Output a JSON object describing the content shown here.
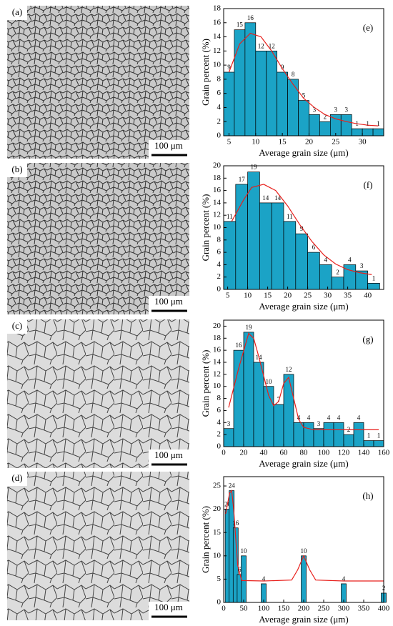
{
  "images": [
    {
      "label": "(a)",
      "scale_bar": "100 μm"
    },
    {
      "label": "(b)",
      "scale_bar": "100 μm"
    },
    {
      "label": "(c)",
      "scale_bar": "100 μm"
    },
    {
      "label": "(d)",
      "scale_bar": "100 μm"
    }
  ],
  "chart_data": [
    {
      "type": "histogram",
      "label": "(e)",
      "xlabel": "Average grain size (μm)",
      "ylabel": "Grain percent (%)",
      "color": "#1ba3c6",
      "fit_color": "#e8201c",
      "bins": [
        4,
        6,
        8,
        10,
        12,
        14,
        16,
        18,
        20,
        22,
        24,
        26,
        28,
        30,
        32,
        34
      ],
      "values": [
        9,
        15,
        16,
        12,
        12,
        9,
        8,
        5,
        3,
        2,
        3,
        3,
        1,
        1,
        1
      ],
      "xlim": [
        4,
        34
      ],
      "xticks": [
        5,
        10,
        15,
        20,
        25,
        30
      ],
      "ylim": [
        0,
        18
      ],
      "yticks": [
        0,
        2,
        4,
        6,
        8,
        10,
        12,
        14,
        16,
        18
      ],
      "fit": {
        "x": [
          5,
          7,
          9,
          11,
          13,
          15,
          17,
          19,
          21,
          23,
          25,
          27,
          29,
          31,
          33
        ],
        "y": [
          9,
          13,
          14.5,
          14,
          12,
          9.5,
          7.3,
          5.3,
          4,
          3,
          2.4,
          2,
          1.7,
          1.5,
          1.4
        ]
      }
    },
    {
      "type": "histogram",
      "label": "(f)",
      "xlabel": "Average grain size (μm)",
      "ylabel": "Grain percent (%)",
      "color": "#1ba3c6",
      "fit_color": "#e8201c",
      "bins": [
        4,
        7,
        10,
        13,
        16,
        19,
        22,
        25,
        28,
        31,
        34,
        37,
        40,
        43
      ],
      "values": [
        11,
        17,
        19,
        14,
        14,
        11,
        9,
        6,
        4,
        2,
        4,
        3,
        1
      ],
      "xlim": [
        4,
        44
      ],
      "xticks": [
        5,
        10,
        15,
        20,
        25,
        30,
        35,
        40
      ],
      "ylim": [
        0,
        20
      ],
      "yticks": [
        0,
        2,
        4,
        6,
        8,
        10,
        12,
        14,
        16,
        18,
        20
      ],
      "fit": {
        "x": [
          6,
          9,
          11,
          14,
          17,
          20,
          23,
          26,
          29,
          32,
          35,
          38,
          41
        ],
        "y": [
          11,
          14.5,
          16.5,
          17,
          16,
          13.5,
          10.5,
          7.8,
          5.6,
          4.1,
          3.2,
          2.7,
          2.4
        ]
      }
    },
    {
      "type": "histogram",
      "label": "(g)",
      "xlabel": "Average grain size (μm)",
      "ylabel": "Grain percent (%)",
      "color": "#1ba3c6",
      "fit_color": "#e8201c",
      "bins": [
        0,
        10,
        20,
        30,
        40,
        50,
        60,
        70,
        80,
        90,
        100,
        110,
        120,
        130,
        140,
        150,
        160
      ],
      "values": [
        3,
        16,
        19,
        14,
        10,
        7,
        12,
        4,
        4,
        3,
        4,
        4,
        2,
        4,
        1,
        1
      ],
      "xlim": [
        0,
        160
      ],
      "xticks": [
        0,
        20,
        40,
        60,
        80,
        100,
        120,
        140,
        160
      ],
      "ylim": [
        0,
        21
      ],
      "yticks": [
        0,
        2,
        4,
        6,
        8,
        10,
        12,
        14,
        16,
        18,
        20
      ],
      "fit": {
        "x": [
          5,
          15,
          25,
          30,
          35,
          45,
          50,
          55,
          60,
          65,
          70,
          75,
          80,
          90,
          155
        ],
        "y": [
          6.5,
          13,
          18.8,
          18,
          15,
          8.5,
          6.8,
          7.5,
          10.5,
          11.5,
          8,
          4.5,
          3.2,
          2.8,
          2.8
        ]
      }
    },
    {
      "type": "bar",
      "label": "(h)",
      "xlabel": "Average grain size (μm)",
      "ylabel": "Grain percent (%)",
      "color": "#1ba3c6",
      "fit_color": "#e8201c",
      "x": [
        10,
        20,
        30,
        40,
        50,
        100,
        200,
        300,
        400
      ],
      "values": [
        20,
        24,
        16,
        6,
        10,
        4,
        10,
        4,
        2
      ],
      "xlim": [
        0,
        400
      ],
      "xticks": [
        0,
        50,
        100,
        150,
        200,
        250,
        300,
        350,
        400
      ],
      "ylim": [
        0,
        27
      ],
      "yticks": [
        0,
        5,
        10,
        15,
        20,
        25
      ],
      "fit": {
        "x": [
          5,
          15,
          20,
          25,
          35,
          45,
          100,
          170,
          185,
          200,
          215,
          230,
          300,
          400
        ],
        "y": [
          19,
          23.5,
          24,
          20,
          8,
          4.7,
          4.6,
          4.8,
          7,
          10,
          7,
          4.8,
          4.6,
          4.6
        ]
      }
    }
  ]
}
